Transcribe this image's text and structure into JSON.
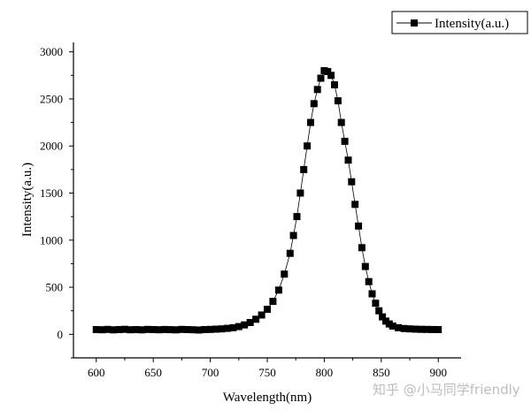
{
  "chart_data": {
    "type": "scatter",
    "xlabel": "Wavelength(nm)",
    "ylabel": "Intensity(a.u.)",
    "xlim": [
      580,
      920
    ],
    "ylim": [
      -250,
      3100
    ],
    "xticks": [
      "600",
      "650",
      "700",
      "750",
      "800",
      "850",
      "900"
    ],
    "yticks": [
      "0",
      "500",
      "1000",
      "1500",
      "2000",
      "2500",
      "3000"
    ],
    "grid": false,
    "legend_position": "top-right",
    "series": [
      {
        "name": "Intensity(a.u.)",
        "color": "#000000",
        "marker": "square",
        "line": "connected",
        "points": [
          [
            600,
            50
          ],
          [
            605,
            48
          ],
          [
            610,
            52
          ],
          [
            615,
            47
          ],
          [
            620,
            50
          ],
          [
            625,
            53
          ],
          [
            630,
            48
          ],
          [
            635,
            50
          ],
          [
            640,
            47
          ],
          [
            645,
            52
          ],
          [
            650,
            50
          ],
          [
            655,
            48
          ],
          [
            660,
            51
          ],
          [
            665,
            49
          ],
          [
            670,
            47
          ],
          [
            675,
            52
          ],
          [
            680,
            50
          ],
          [
            685,
            48
          ],
          [
            690,
            46
          ],
          [
            695,
            50
          ],
          [
            700,
            52
          ],
          [
            705,
            55
          ],
          [
            710,
            58
          ],
          [
            715,
            63
          ],
          [
            720,
            70
          ],
          [
            725,
            82
          ],
          [
            730,
            100
          ],
          [
            735,
            125
          ],
          [
            740,
            160
          ],
          [
            745,
            205
          ],
          [
            750,
            265
          ],
          [
            755,
            350
          ],
          [
            760,
            470
          ],
          [
            765,
            640
          ],
          [
            770,
            860
          ],
          [
            773,
            1050
          ],
          [
            776,
            1250
          ],
          [
            779,
            1500
          ],
          [
            782,
            1750
          ],
          [
            785,
            2000
          ],
          [
            788,
            2250
          ],
          [
            791,
            2450
          ],
          [
            794,
            2600
          ],
          [
            797,
            2720
          ],
          [
            800,
            2800
          ],
          [
            803,
            2790
          ],
          [
            806,
            2750
          ],
          [
            809,
            2650
          ],
          [
            812,
            2480
          ],
          [
            815,
            2250
          ],
          [
            818,
            2050
          ],
          [
            821,
            1850
          ],
          [
            824,
            1620
          ],
          [
            827,
            1380
          ],
          [
            830,
            1150
          ],
          [
            833,
            920
          ],
          [
            836,
            720
          ],
          [
            839,
            560
          ],
          [
            842,
            430
          ],
          [
            845,
            330
          ],
          [
            848,
            250
          ],
          [
            851,
            185
          ],
          [
            854,
            140
          ],
          [
            857,
            110
          ],
          [
            860,
            88
          ],
          [
            865,
            70
          ],
          [
            870,
            62
          ],
          [
            875,
            58
          ],
          [
            880,
            55
          ],
          [
            885,
            53
          ],
          [
            890,
            52
          ],
          [
            895,
            51
          ],
          [
            900,
            50
          ]
        ]
      }
    ]
  },
  "watermark": "知乎 @小马同学friendly"
}
